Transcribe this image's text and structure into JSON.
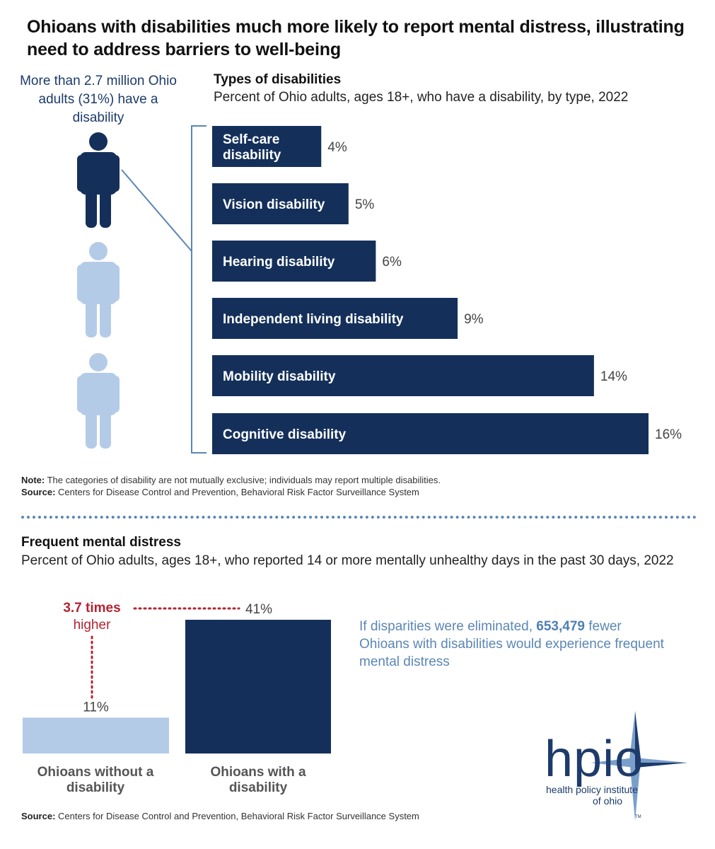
{
  "title": "Ohioans with disabilities much more likely to report mental distress, illustrating need to address barriers to well-being",
  "stat_callout": "More than 2.7 million Ohio adults (31%) have a disability",
  "note_label": "Note:",
  "note_text": "The categories of disability are not mutually exclusive; individuals may report multiple disabilities.",
  "source_label": "Source:",
  "source_text": "Centers for Disease Control and Prevention, Behavioral Risk Factor Surveillance System",
  "ratio": {
    "value": "3.7 times",
    "word": "higher"
  },
  "callout": {
    "prefix": "If disparities were eliminated, ",
    "number": "653,479",
    "suffix": " fewer Ohioans with disabilities would experience frequent mental distress"
  },
  "logo": {
    "wordmark": "hpio",
    "line1": "health policy institute",
    "line2": "of ohio",
    "tm": "TM"
  },
  "colors": {
    "navy": "#14305a",
    "light_blue": "#b4cbe8",
    "red": "#b52330",
    "accent_blue": "#5b86b5"
  },
  "chart_data": [
    {
      "type": "bar",
      "orientation": "horizontal",
      "title": "Types of disabilities",
      "subtitle": "Percent of Ohio adults, ages 18+, who have a disability, by type, 2022",
      "categories": [
        "Self-care disability",
        "Vision disability",
        "Hearing disability",
        "Independent living disability",
        "Mobility disability",
        "Cognitive disability"
      ],
      "values": [
        4,
        5,
        6,
        9,
        14,
        16
      ],
      "value_labels": [
        "4%",
        "5%",
        "6%",
        "9%",
        "14%",
        "16%"
      ],
      "xlim": [
        0,
        16
      ]
    },
    {
      "type": "bar",
      "orientation": "vertical",
      "title": "Frequent mental distress",
      "subtitle": "Percent of Ohio adults, ages 18+, who reported 14 or more mentally unhealthy days in the past 30 days, 2022",
      "categories": [
        "Ohioans without a disability",
        "Ohioans with a disability"
      ],
      "values": [
        11,
        41
      ],
      "value_labels": [
        "11%",
        "41%"
      ],
      "ylim": [
        0,
        41
      ]
    }
  ]
}
